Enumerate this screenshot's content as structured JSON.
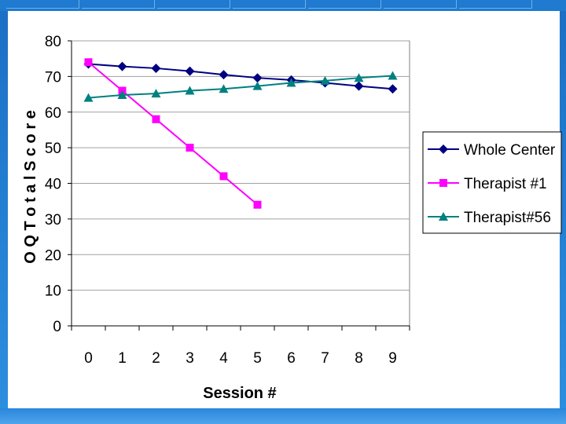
{
  "chart_data": {
    "type": "line",
    "xlabel": "Session #",
    "ylabel": "O Q  T o t a l  S c o r e",
    "x": [
      0,
      1,
      2,
      3,
      4,
      5,
      6,
      7,
      8,
      9
    ],
    "ylim": [
      0,
      80
    ],
    "yticks": [
      0,
      10,
      20,
      30,
      40,
      50,
      60,
      70,
      80
    ],
    "grid": true,
    "legend_position": "right",
    "series": [
      {
        "name": "Whole Center",
        "color": "#000080",
        "marker": "diamond",
        "values": [
          73.5,
          72.8,
          72.3,
          71.5,
          70.5,
          69.6,
          69.0,
          68.2,
          67.3,
          66.5
        ]
      },
      {
        "name": "Therapist #1",
        "color": "#ff00ff",
        "marker": "square",
        "values": [
          74,
          66,
          58,
          50,
          42,
          34,
          null,
          null,
          null,
          null
        ]
      },
      {
        "name": "Therapist#56",
        "color": "#008080",
        "marker": "triangle",
        "values": [
          64,
          64.8,
          65.2,
          66.0,
          66.5,
          67.3,
          68.2,
          68.8,
          69.6,
          70.2
        ]
      }
    ]
  }
}
